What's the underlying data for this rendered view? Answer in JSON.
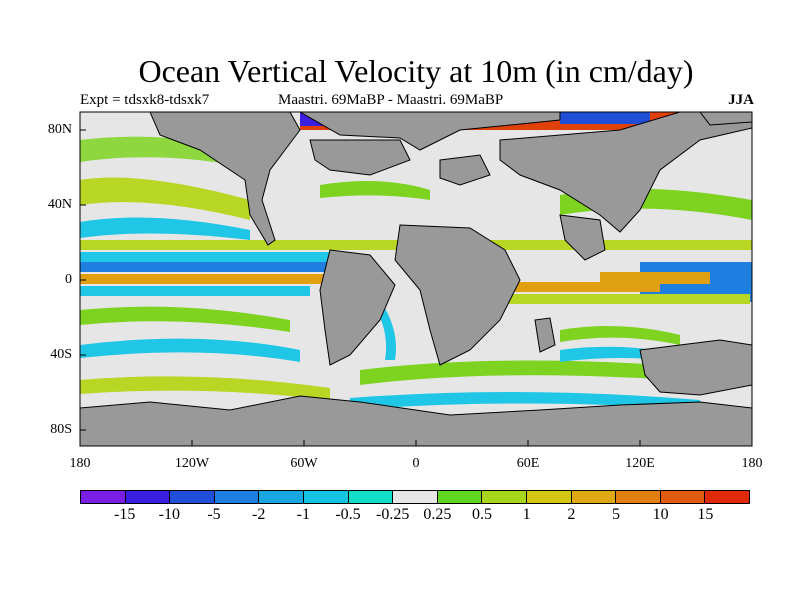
{
  "title": "Ocean Vertical Velocity at 10m (in cm/day)",
  "experiment": "Expt = tdsxk8-tdsxk7",
  "period_label": "Maastri.  69MaBP - Maastri.  69MaBP",
  "season": "JJA",
  "y_labels": [
    "80N",
    "40N",
    "0",
    "40S",
    "80S"
  ],
  "x_labels": [
    "180",
    "120W",
    "60W",
    "0",
    "60E",
    "120E",
    "180"
  ],
  "colorbar": {
    "colors": [
      "#7a1ee6",
      "#3b1fe0",
      "#1f4fd8",
      "#1e7fe0",
      "#1aa6e0",
      "#14c4e0",
      "#12ddc8",
      "#e6e6e6",
      "#5fd61f",
      "#a8d61a",
      "#d4c812",
      "#e0a812",
      "#e08012",
      "#e05a10",
      "#e02a0a"
    ],
    "labels": [
      "-15",
      "-10",
      "-5",
      "-2",
      "-1",
      "-0.5",
      "-0.25",
      "0.25",
      "0.5",
      "1",
      "2",
      "5",
      "10",
      "15"
    ]
  },
  "colors": {
    "land": "#999999",
    "ocean_neutral": "#e6e6e6",
    "green": "#7ed321",
    "yellowgreen": "#b8d624",
    "cyan": "#1fc6e6",
    "blue": "#1e7fe0",
    "orange": "#e0a012",
    "red": "#e0400a"
  }
}
